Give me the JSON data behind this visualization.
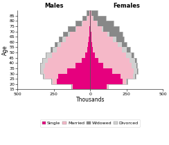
{
  "ages": [
    15,
    20,
    25,
    30,
    35,
    40,
    45,
    50,
    55,
    60,
    65,
    70,
    75,
    80,
    85
  ],
  "males_single": [
    120,
    230,
    220,
    160,
    100,
    60,
    35,
    20,
    15,
    10,
    8,
    5,
    3,
    2,
    1
  ],
  "males_married": [
    5,
    30,
    90,
    160,
    210,
    230,
    230,
    210,
    185,
    160,
    130,
    90,
    50,
    20,
    6
  ],
  "males_widowed": [
    1,
    2,
    2,
    3,
    5,
    6,
    8,
    12,
    16,
    24,
    36,
    50,
    45,
    32,
    15
  ],
  "males_divorced": [
    2,
    4,
    12,
    20,
    28,
    35,
    35,
    30,
    26,
    20,
    14,
    8,
    5,
    2,
    1
  ],
  "females_single": [
    115,
    220,
    210,
    150,
    90,
    55,
    30,
    18,
    12,
    8,
    6,
    4,
    2,
    1,
    1
  ],
  "females_married": [
    5,
    28,
    85,
    150,
    195,
    215,
    215,
    200,
    175,
    148,
    112,
    76,
    44,
    18,
    5
  ],
  "females_widowed": [
    1,
    2,
    4,
    5,
    8,
    10,
    15,
    22,
    36,
    56,
    90,
    110,
    110,
    85,
    45
  ],
  "females_divorced": [
    2,
    5,
    14,
    22,
    30,
    38,
    37,
    33,
    28,
    22,
    16,
    10,
    5,
    2,
    1
  ],
  "color_single": "#e6007e",
  "color_married": "#f5b8c8",
  "color_widowed": "#888888",
  "color_divorced": "#d0d0d0",
  "xlabel": "Thousands",
  "ylabel": "Age",
  "xlim_left": -500,
  "xlim_right": 500,
  "ytick_labels": [
    "15",
    "20",
    "25",
    "30",
    "35",
    "40",
    "45",
    "50",
    "55",
    "60",
    "65",
    "70",
    "75",
    "80",
    "85"
  ],
  "xtick_vals": [
    -500,
    -250,
    0,
    250,
    500
  ],
  "xtick_labels": [
    "500",
    "250",
    "0",
    "250",
    "500"
  ],
  "title_males": "Males",
  "title_females": "Females",
  "legend_labels": [
    "Single",
    "Married",
    "Widowed",
    "Divorced"
  ],
  "age_band": 5,
  "ylim_bottom": 15,
  "ylim_top": 90
}
